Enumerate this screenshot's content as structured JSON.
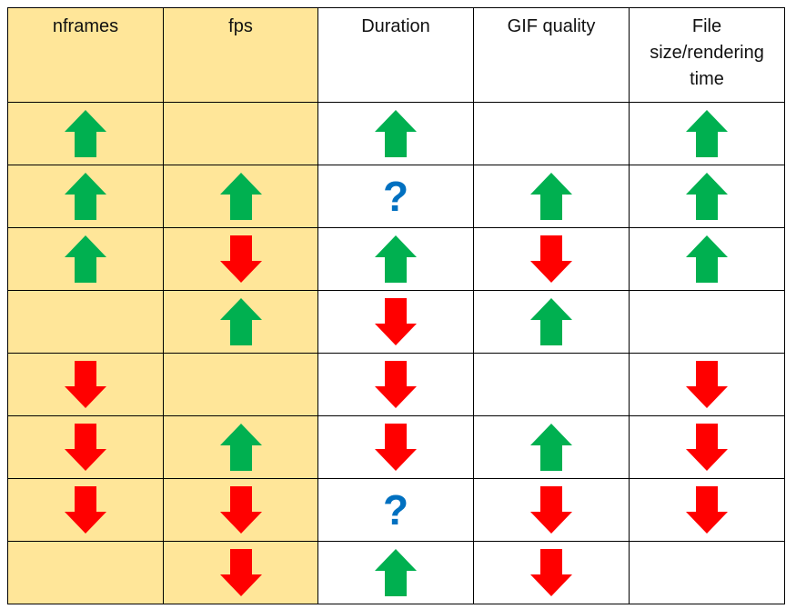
{
  "colors": {
    "input_column_bg": "#FFE699",
    "up_arrow": "#00B050",
    "down_arrow": "#FF0000",
    "question_mark": "#0070C0"
  },
  "table": {
    "headers": [
      "nframes",
      "fps",
      "Duration",
      "GIF quality",
      "File size/rendering time"
    ],
    "shaded_columns": [
      0,
      1
    ],
    "rows": [
      [
        "up-arrow",
        "",
        "up-arrow",
        "",
        "up-arrow"
      ],
      [
        "up-arrow",
        "up-arrow",
        "?",
        "up-arrow",
        "up-arrow"
      ],
      [
        "up-arrow",
        "down-arrow",
        "up-arrow",
        "down-arrow",
        "up-arrow"
      ],
      [
        "",
        "up-arrow",
        "down-arrow",
        "up-arrow",
        ""
      ],
      [
        "down-arrow",
        "",
        "down-arrow",
        "",
        "down-arrow"
      ],
      [
        "down-arrow",
        "up-arrow",
        "down-arrow",
        "up-arrow",
        "down-arrow"
      ],
      [
        "down-arrow",
        "down-arrow",
        "?",
        "down-arrow",
        "down-arrow"
      ],
      [
        "",
        "down-arrow",
        "up-arrow",
        "down-arrow",
        ""
      ]
    ]
  }
}
